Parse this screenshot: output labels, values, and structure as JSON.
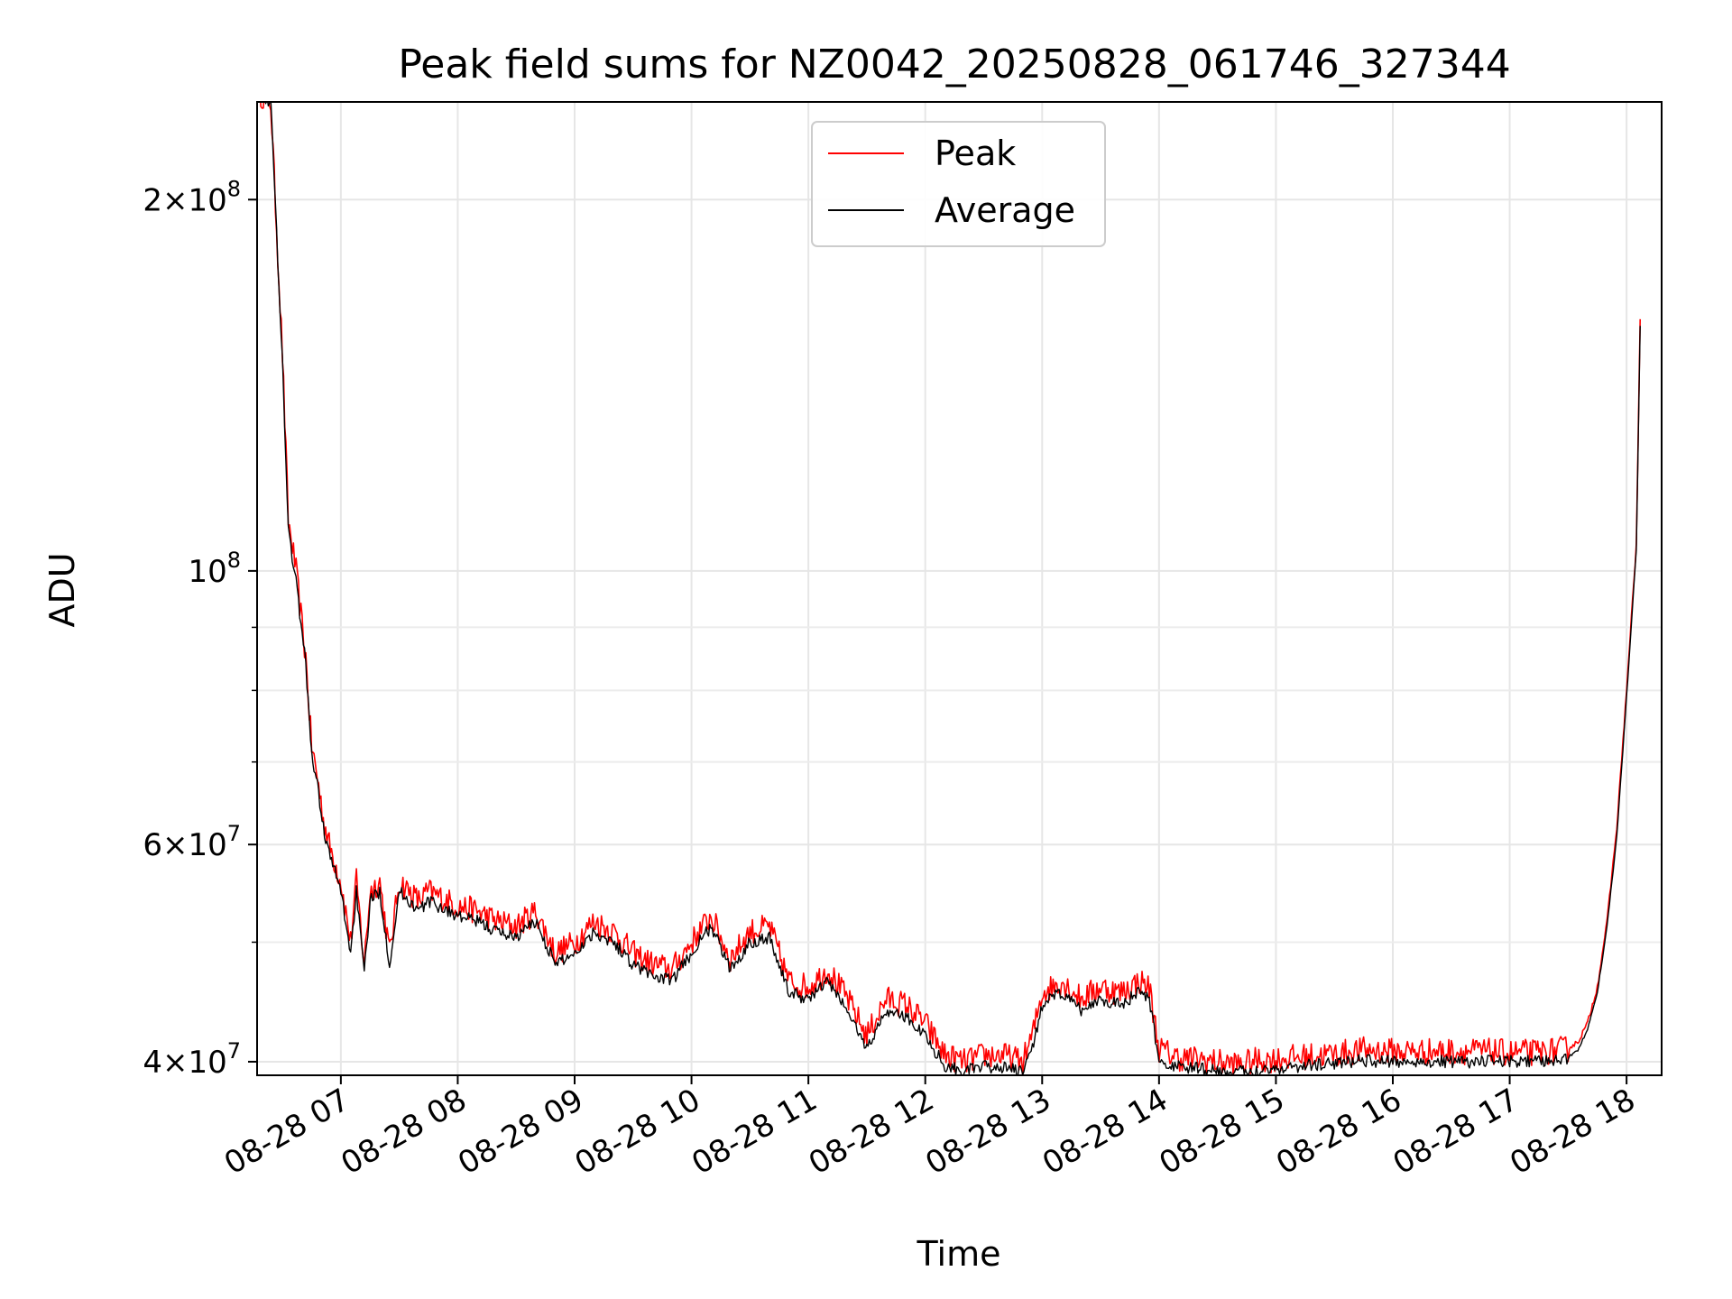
{
  "chart_data": {
    "type": "line",
    "title": "Peak field sums for NZ0042_20250828_061746_327344",
    "xlabel": "Time",
    "ylabel": "ADU",
    "y_scale": "log",
    "ylim": [
      39000000,
      240000000
    ],
    "xlim": [
      "08-28 06:17",
      "08-28 18:18"
    ],
    "grid": true,
    "legend_position": "top-center",
    "x_tick_labels": [
      "08-28 07",
      "08-28 08",
      "08-28 09",
      "08-28 10",
      "08-28 11",
      "08-28 12",
      "08-28 13",
      "08-28 14",
      "08-28 15",
      "08-28 16",
      "08-28 17",
      "08-28 18"
    ],
    "x_ticks": [
      "08-28 07:00",
      "08-28 08:00",
      "08-28 09:00",
      "08-28 10:00",
      "08-28 11:00",
      "08-28 12:00",
      "08-28 13:00",
      "08-28 14:00",
      "08-28 15:00",
      "08-28 16:00",
      "08-28 17:00",
      "08-28 18:00"
    ],
    "y_major_ticks": [
      {
        "value": 40000000,
        "mantissa": "4",
        "exp": "7"
      },
      {
        "value": 60000000,
        "mantissa": "6",
        "exp": "7"
      },
      {
        "value": 100000000,
        "mantissa": "",
        "exp": "8"
      },
      {
        "value": 200000000,
        "mantissa": "2",
        "exp": "8"
      }
    ],
    "y_minor_ticks": [
      50000000,
      70000000,
      80000000,
      90000000
    ],
    "series": [
      {
        "name": "Peak",
        "color": "#ff0000",
        "x": [
          "08-28 06:17",
          "08-28 06:24",
          "08-28 06:30",
          "08-28 06:33",
          "08-28 06:37",
          "08-28 06:42",
          "08-28 06:45",
          "08-28 06:48",
          "08-28 06:51",
          "08-28 06:54",
          "08-28 07:00",
          "08-28 07:05",
          "08-28 07:08",
          "08-28 07:12",
          "08-28 07:15",
          "08-28 07:20",
          "08-28 07:25",
          "08-28 07:30",
          "08-28 07:35",
          "08-28 07:40",
          "08-28 07:45",
          "08-28 07:50",
          "08-28 08:00",
          "08-28 08:10",
          "08-28 08:20",
          "08-28 08:30",
          "08-28 08:40",
          "08-28 08:50",
          "08-28 09:00",
          "08-28 09:10",
          "08-28 09:20",
          "08-28 09:30",
          "08-28 09:40",
          "08-28 09:50",
          "08-28 10:00",
          "08-28 10:10",
          "08-28 10:20",
          "08-28 10:30",
          "08-28 10:40",
          "08-28 10:50",
          "08-28 11:00",
          "08-28 11:10",
          "08-28 11:20",
          "08-28 11:30",
          "08-28 11:40",
          "08-28 11:50",
          "08-28 12:00",
          "08-28 12:10",
          "08-28 12:20",
          "08-28 12:30",
          "08-28 12:40",
          "08-28 12:50",
          "08-28 12:55",
          "08-28 13:00",
          "08-28 13:10",
          "08-28 13:20",
          "08-28 13:30",
          "08-28 13:40",
          "08-28 13:50",
          "08-28 13:55",
          "08-28 14:00",
          "08-28 14:10",
          "08-28 14:20",
          "08-28 14:30",
          "08-28 14:40",
          "08-28 14:50",
          "08-28 15:00",
          "08-28 15:15",
          "08-28 15:30",
          "08-28 15:45",
          "08-28 16:00",
          "08-28 16:15",
          "08-28 16:30",
          "08-28 16:45",
          "08-28 17:00",
          "08-28 17:15",
          "08-28 17:25",
          "08-28 17:30",
          "08-28 17:35",
          "08-28 17:40",
          "08-28 17:45",
          "08-28 17:50",
          "08-28 17:55",
          "08-28 18:00",
          "08-28 18:05",
          "08-28 18:07"
        ],
        "values": [
          245000000,
          240000000,
          150000000,
          110000000,
          100000000,
          85000000,
          72000000,
          68000000,
          63000000,
          60000000,
          56000000,
          50000000,
          56000000,
          48000000,
          55000000,
          56000000,
          49000000,
          56000000,
          55000000,
          54000000,
          55000000,
          54500000,
          53500000,
          53000000,
          52000000,
          51500000,
          53000000,
          49000000,
          50000000,
          52000000,
          51000000,
          49000000,
          48000000,
          47500000,
          50000000,
          52500000,
          48500000,
          51000000,
          51500000,
          46500000,
          46000000,
          47500000,
          45000000,
          42000000,
          45000000,
          44500000,
          43000000,
          40500000,
          40000000,
          40500000,
          40500000,
          40000000,
          42000000,
          45500000,
          46500000,
          45000000,
          46000000,
          45500000,
          46500000,
          46000000,
          41000000,
          40300000,
          40200000,
          40000000,
          39800000,
          40100000,
          40200000,
          40400000,
          40600000,
          40900000,
          40800000,
          40800000,
          40800000,
          40800000,
          40700000,
          40700000,
          40900000,
          41000000,
          41500000,
          43000000,
          46000000,
          52000000,
          62000000,
          80000000,
          105000000,
          160000000
        ]
      },
      {
        "name": "Average",
        "color": "#000000",
        "x": [
          "08-28 06:17",
          "08-28 06:24",
          "08-28 06:30",
          "08-28 06:33",
          "08-28 06:37",
          "08-28 06:42",
          "08-28 06:45",
          "08-28 06:48",
          "08-28 06:51",
          "08-28 06:54",
          "08-28 07:00",
          "08-28 07:05",
          "08-28 07:08",
          "08-28 07:12",
          "08-28 07:15",
          "08-28 07:20",
          "08-28 07:25",
          "08-28 07:30",
          "08-28 07:35",
          "08-28 07:40",
          "08-28 07:45",
          "08-28 07:50",
          "08-28 08:00",
          "08-28 08:10",
          "08-28 08:20",
          "08-28 08:30",
          "08-28 08:40",
          "08-28 08:50",
          "08-28 09:00",
          "08-28 09:10",
          "08-28 09:20",
          "08-28 09:30",
          "08-28 09:40",
          "08-28 09:50",
          "08-28 10:00",
          "08-28 10:10",
          "08-28 10:20",
          "08-28 10:30",
          "08-28 10:40",
          "08-28 10:50",
          "08-28 11:00",
          "08-28 11:10",
          "08-28 11:20",
          "08-28 11:30",
          "08-28 11:40",
          "08-28 11:50",
          "08-28 12:00",
          "08-28 12:10",
          "08-28 12:20",
          "08-28 12:30",
          "08-28 12:40",
          "08-28 12:50",
          "08-28 12:55",
          "08-28 13:00",
          "08-28 13:10",
          "08-28 13:20",
          "08-28 13:30",
          "08-28 13:40",
          "08-28 13:50",
          "08-28 13:55",
          "08-28 14:00",
          "08-28 14:10",
          "08-28 14:20",
          "08-28 14:30",
          "08-28 14:40",
          "08-28 14:50",
          "08-28 15:00",
          "08-28 15:15",
          "08-28 15:30",
          "08-28 15:45",
          "08-28 16:00",
          "08-28 16:15",
          "08-28 16:30",
          "08-28 16:45",
          "08-28 17:00",
          "08-28 17:15",
          "08-28 17:25",
          "08-28 17:30",
          "08-28 17:35",
          "08-28 17:40",
          "08-28 17:45",
          "08-28 17:50",
          "08-28 17:55",
          "08-28 18:00",
          "08-28 18:05",
          "08-28 18:07"
        ],
        "values": [
          245000000,
          240000000,
          148000000,
          108000000,
          98000000,
          84000000,
          71000000,
          67000000,
          62000000,
          59000000,
          55000000,
          49000000,
          55000000,
          47000000,
          54000000,
          55000000,
          48000000,
          55000000,
          54000000,
          53000000,
          54000000,
          53500000,
          52500000,
          52000000,
          51000000,
          50500000,
          52000000,
          48000000,
          49000000,
          51000000,
          50000000,
          48000000,
          47000000,
          46500000,
          49000000,
          51500000,
          47500000,
          50000000,
          50500000,
          45500000,
          45000000,
          46500000,
          44000000,
          41000000,
          44000000,
          43500000,
          42000000,
          39700000,
          39300000,
          39600000,
          39600000,
          39200000,
          41000000,
          44500000,
          45500000,
          44000000,
          45000000,
          44500000,
          45500000,
          45000000,
          40000000,
          39600000,
          39500000,
          39300000,
          39200000,
          39400000,
          39500000,
          39700000,
          39900000,
          40100000,
          40000000,
          40000000,
          40000000,
          40000000,
          40000000,
          40000000,
          40100000,
          40300000,
          40900000,
          42500000,
          45500000,
          51500000,
          61000000,
          79000000,
          104000000,
          158000000
        ]
      }
    ]
  }
}
